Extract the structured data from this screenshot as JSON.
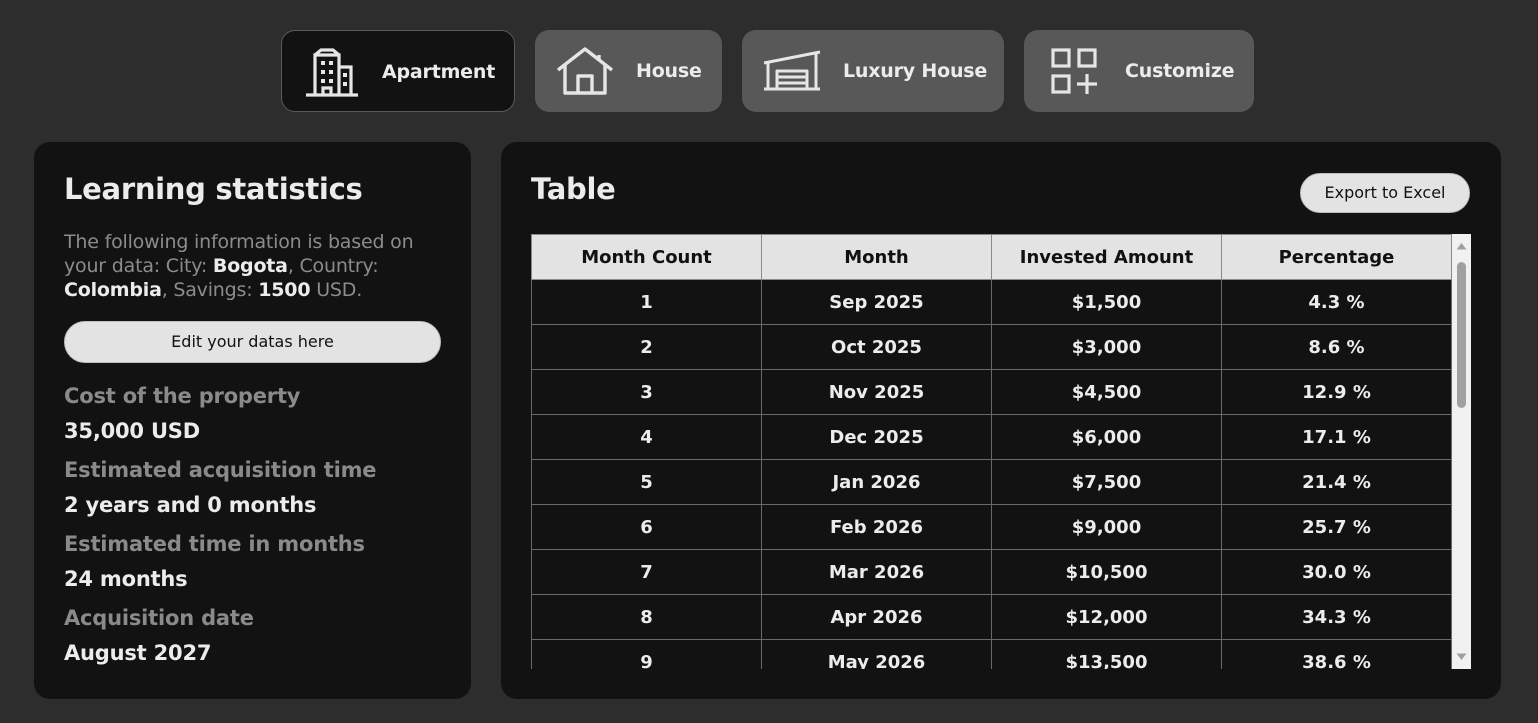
{
  "property_types": [
    {
      "label": "Apartment",
      "icon": "apartment-building-icon",
      "active": true
    },
    {
      "label": "House",
      "icon": "house-icon",
      "active": false
    },
    {
      "label": "Luxury House",
      "icon": "luxury-house-garage-icon",
      "active": false
    },
    {
      "label": "Customize",
      "icon": "grid-plus-icon",
      "active": false
    }
  ],
  "stats": {
    "title": "Learning statistics",
    "intro_prefix": "The following information is based on your data: City: ",
    "city": "Bogota",
    "country_prefix": ", Country: ",
    "country": "Colombia",
    "savings_prefix": ", Savings: ",
    "savings": "1500",
    "savings_suffix": " USD.",
    "edit_button": "Edit your datas here",
    "items": [
      {
        "label": "Cost of the property",
        "value": "35,000 USD"
      },
      {
        "label": "Estimated acquisition time",
        "value": "2 years and 0 months"
      },
      {
        "label": "Estimated time in months",
        "value": "24 months"
      },
      {
        "label": "Acquisition date",
        "value": "August 2027"
      }
    ]
  },
  "table": {
    "title": "Table",
    "export_button": "Export to Excel",
    "columns": [
      "Month Count",
      "Month",
      "Invested Amount",
      "Percentage"
    ],
    "rows": [
      [
        "1",
        "Sep 2025",
        "$1,500",
        "4.3 %"
      ],
      [
        "2",
        "Oct 2025",
        "$3,000",
        "8.6 %"
      ],
      [
        "3",
        "Nov 2025",
        "$4,500",
        "12.9 %"
      ],
      [
        "4",
        "Dec 2025",
        "$6,000",
        "17.1 %"
      ],
      [
        "5",
        "Jan 2026",
        "$7,500",
        "21.4 %"
      ],
      [
        "6",
        "Feb 2026",
        "$9,000",
        "25.7 %"
      ],
      [
        "7",
        "Mar 2026",
        "$10,500",
        "30.0 %"
      ],
      [
        "8",
        "Apr 2026",
        "$12,000",
        "34.3 %"
      ],
      [
        "9",
        "May 2026",
        "$13,500",
        "38.6 %"
      ]
    ]
  },
  "colors": {
    "background": "#2d2d2d",
    "panel": "#121212",
    "inactive_button": "#585858",
    "header_cell": "#e3e3e3"
  }
}
